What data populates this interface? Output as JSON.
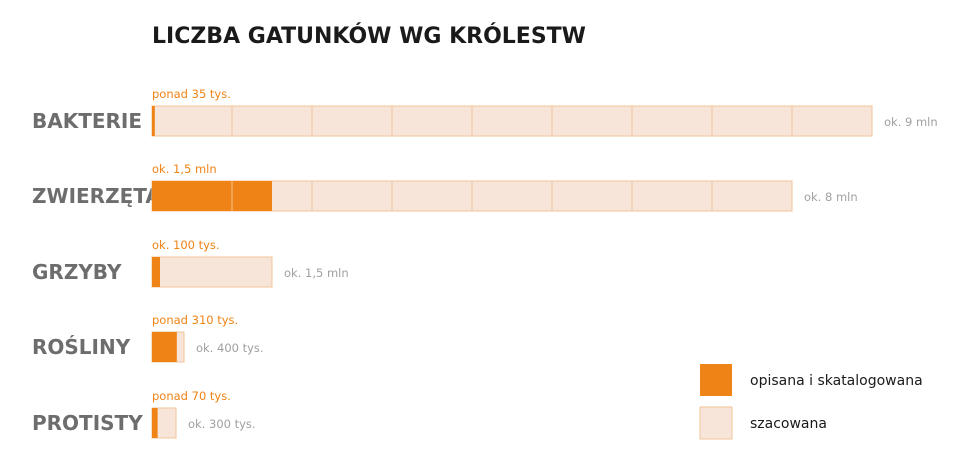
{
  "chart_data": {
    "type": "bar",
    "title": "LICZBA GATUNKÓW WG KRÓLESTW",
    "xlabel": "",
    "ylabel": "",
    "unit_note": "",
    "categories": [
      "BAKTERIE",
      "ZWIERZĘTA",
      "GRZYBY",
      "ROŚLINY",
      "PROTISTY"
    ],
    "series": [
      {
        "name": "opisana i skatalogowana",
        "values": [
          35000,
          1500000,
          100000,
          310000,
          70000
        ],
        "labels": [
          "ponad 35 tys.",
          "ok. 1,5 mln",
          "ok. 100 tys.",
          "ponad 310 tys.",
          "ponad 70 tys."
        ]
      },
      {
        "name": "szacowana",
        "values": [
          9000000,
          8000000,
          1500000,
          400000,
          300000
        ],
        "labels": [
          "ok. 9 mln",
          "ok. 8 mln",
          "ok. 1,5 mln",
          "ok. 400 tys.",
          "ok. 300 tys."
        ]
      }
    ],
    "segment_unit": 1000000,
    "legend_position": "bottom-right",
    "grid": false
  },
  "colors": {
    "described": "#f08315",
    "estimated": "#f6e5d8",
    "border": "#f2c59a",
    "category_text": "#6d6d6d",
    "estimate_text": "#a0a0a0",
    "title_text": "#1a1a1a"
  }
}
